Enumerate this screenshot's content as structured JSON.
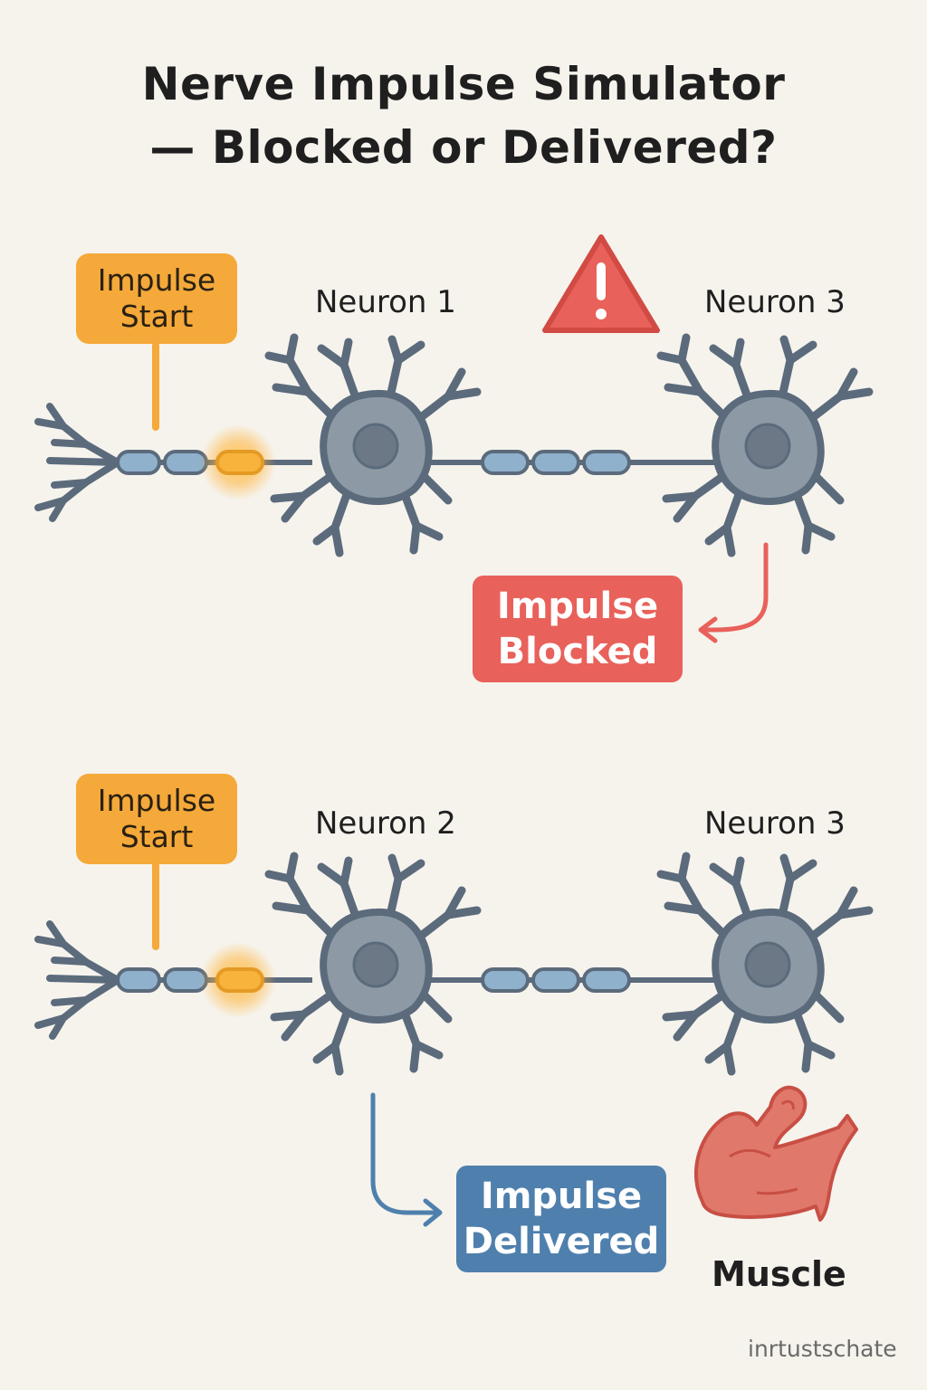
{
  "title": {
    "line1": "Nerve Impulse Simulator",
    "line2": "— Blocked or Delivered?"
  },
  "scenario_blocked": {
    "start_label_line1": "Impulse",
    "start_label_line2": "Start",
    "neuron_a": "Neuron 1",
    "neuron_b": "Neuron 3",
    "warning_icon": "warning-triangle-icon",
    "status_line1": "Impulse",
    "status_line2": "Blocked"
  },
  "scenario_delivered": {
    "start_label_line1": "Impulse",
    "start_label_line2": "Start",
    "neuron_a": "Neuron 2",
    "neuron_b": "Neuron 3",
    "status_line1": "Impulse",
    "status_line2": "Delivered",
    "muscle_icon": "flexed-arm-muscle-icon",
    "muscle_label": "Muscle"
  },
  "watermark": "inrtustschate",
  "colors": {
    "background": "#f6f3ed",
    "impulse_orange": "#f5a93a",
    "neuron_body": "#8d9aa6",
    "neuron_outline": "#5b6b7c",
    "myelin": "#8fb1cc",
    "blocked_red": "#e8615a",
    "delivered_blue": "#4f80ad",
    "muscle": "#e0786b"
  }
}
